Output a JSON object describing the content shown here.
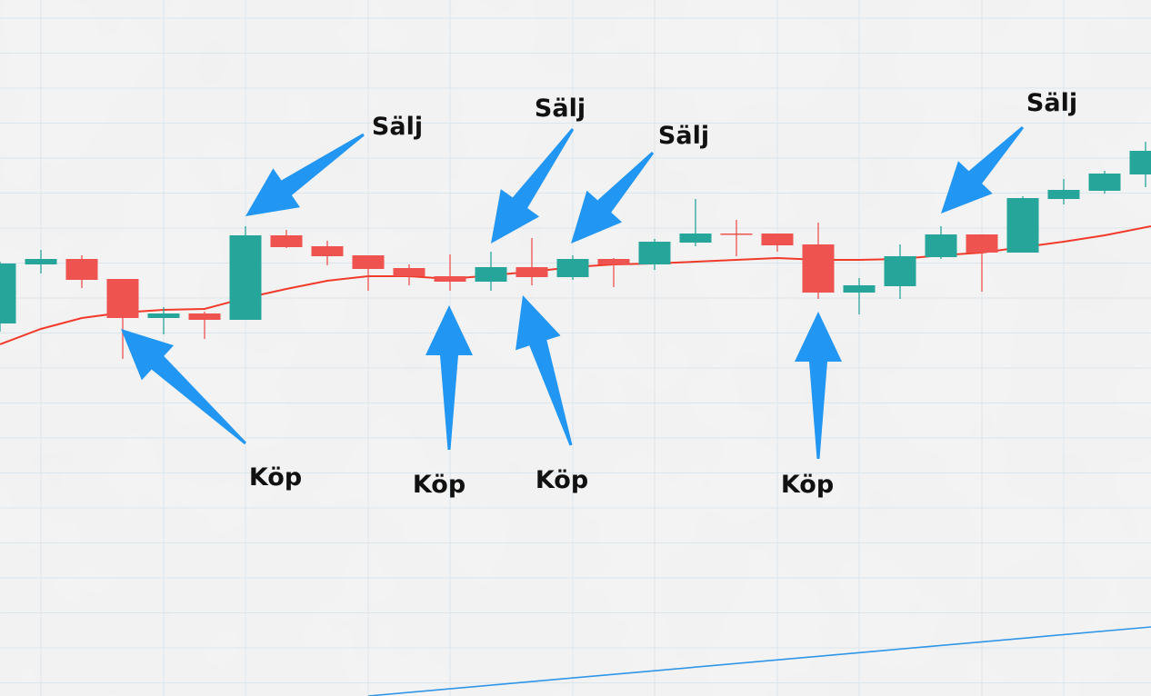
{
  "chart_data": {
    "type": "candlestick",
    "title": "",
    "xlabel": "",
    "ylabel": "",
    "grid": true,
    "colors": {
      "up": "#26a69a",
      "down": "#ef5350",
      "moving_average": "#f23a2a",
      "lower_line": "#2f95e8",
      "arrow": "#2196f3",
      "background": "#f4f4f4",
      "grid": "#dbe6ec"
    },
    "candles": [
      {
        "o": 44.4,
        "c": 51.0,
        "h": 51.2,
        "l": 43.5
      },
      {
        "o": 50.9,
        "c": 51.5,
        "h": 52.5,
        "l": 49.9
      },
      {
        "o": 51.5,
        "c": 49.2,
        "h": 51.9,
        "l": 48.3
      },
      {
        "o": 49.3,
        "c": 45.0,
        "h": 49.3,
        "l": 40.5
      },
      {
        "o": 45.0,
        "c": 45.5,
        "h": 46.2,
        "l": 43.2
      },
      {
        "o": 45.5,
        "c": 44.8,
        "h": 45.7,
        "l": 42.7
      },
      {
        "o": 44.8,
        "c": 54.1,
        "h": 55.1,
        "l": 44.8
      },
      {
        "o": 54.1,
        "c": 52.8,
        "h": 54.7,
        "l": 52.7
      },
      {
        "o": 52.9,
        "c": 51.8,
        "h": 53.5,
        "l": 50.8
      },
      {
        "o": 51.9,
        "c": 50.4,
        "h": 51.9,
        "l": 48.0
      },
      {
        "o": 50.5,
        "c": 49.6,
        "h": 50.9,
        "l": 48.6
      },
      {
        "o": 49.6,
        "c": 49.0,
        "h": 52.0,
        "l": 48.0
      },
      {
        "o": 49.0,
        "c": 50.6,
        "h": 52.3,
        "l": 48.0
      },
      {
        "o": 50.6,
        "c": 49.5,
        "h": 53.8,
        "l": 48.6
      },
      {
        "o": 49.5,
        "c": 51.5,
        "h": 51.9,
        "l": 49.2
      },
      {
        "o": 51.5,
        "c": 50.9,
        "h": 51.6,
        "l": 48.4
      },
      {
        "o": 50.9,
        "c": 53.4,
        "h": 53.7,
        "l": 50.3
      },
      {
        "o": 53.3,
        "c": 54.3,
        "h": 58.1,
        "l": 52.9
      },
      {
        "o": 54.3,
        "c": 54.2,
        "h": 55.8,
        "l": 51.8
      },
      {
        "o": 54.3,
        "c": 53.0,
        "h": 54.3,
        "l": 52.3
      },
      {
        "o": 53.1,
        "c": 47.8,
        "h": 55.5,
        "l": 47.1
      },
      {
        "o": 47.8,
        "c": 48.6,
        "h": 49.4,
        "l": 45.4
      },
      {
        "o": 48.5,
        "c": 51.8,
        "h": 53.1,
        "l": 47.1
      },
      {
        "o": 51.7,
        "c": 54.2,
        "h": 55.1,
        "l": 51.5
      },
      {
        "o": 54.2,
        "c": 52.2,
        "h": 54.2,
        "l": 47.9
      },
      {
        "o": 52.2,
        "c": 58.2,
        "h": 58.4,
        "l": 52.2
      },
      {
        "o": 58.1,
        "c": 59.1,
        "h": 60.3,
        "l": 57.5
      },
      {
        "o": 59.0,
        "c": 60.9,
        "h": 61.2,
        "l": 58.7
      },
      {
        "o": 60.8,
        "c": 63.4,
        "h": 64.4,
        "l": 59.4
      }
    ],
    "moving_average": [
      42.1,
      43.8,
      45.0,
      45.6,
      45.9,
      46.0,
      47.2,
      48.2,
      49.1,
      49.6,
      49.6,
      49.3,
      49.7,
      50.1,
      50.6,
      50.9,
      51.0,
      51.2,
      51.4,
      51.6,
      51.4,
      51.4,
      51.5,
      51.9,
      52.2,
      52.8,
      53.4,
      54.1,
      55.1
    ],
    "lower_line": {
      "start": 3.4,
      "end": 11.0
    },
    "annotations": [
      {
        "label": "Sälj",
        "type": "sell",
        "candle": 6
      },
      {
        "label": "Sälj",
        "type": "sell",
        "candle": 12
      },
      {
        "label": "Sälj",
        "type": "sell",
        "candle": 14
      },
      {
        "label": "Sälj",
        "type": "sell",
        "candle": 23
      },
      {
        "label": "Köp",
        "type": "buy",
        "candle": 3
      },
      {
        "label": "Köp",
        "type": "buy",
        "candle": 11
      },
      {
        "label": "Köp",
        "type": "buy",
        "candle": 13
      },
      {
        "label": "Köp",
        "type": "buy",
        "candle": 20
      }
    ]
  }
}
